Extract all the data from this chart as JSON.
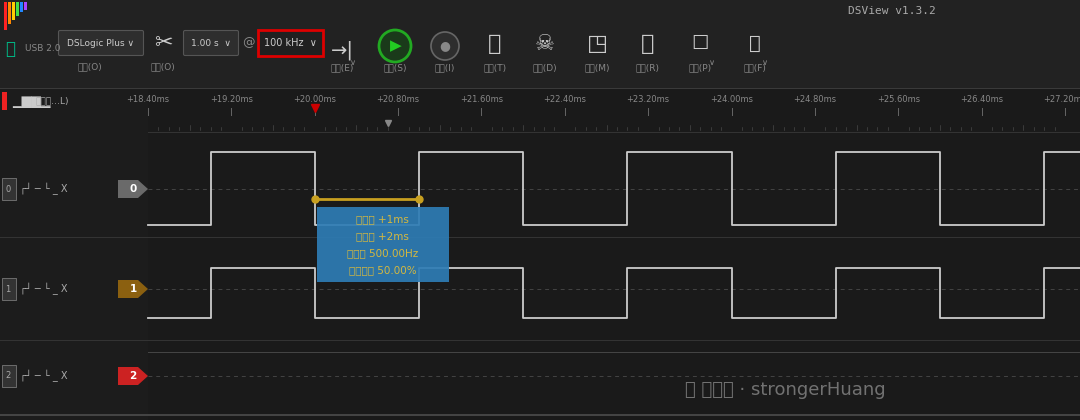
{
  "bg_color": "#1a1a1a",
  "toolbar_bg": "#222222",
  "title_text": "DSView v1.3.2",
  "title_color": "#cccccc",
  "timeline_labels": [
    "+18.40ms",
    "+19.20ms",
    "+20.00ms",
    "+20.80ms",
    "+21.60ms",
    "+22.40ms",
    "+23.20ms",
    "+24.00ms",
    "+24.80ms",
    "+25.60ms",
    "+26.40ms",
    "+27.20ms"
  ],
  "waveform_color": "#cccccc",
  "cursor_color": "#c8a020",
  "popup_bg": "#2e7db5",
  "popup_text_color": "#d4b840",
  "popup_lines": [
    "宽度： +1ms",
    "周期： +2ms",
    "频率： 500.00Hz",
    "占空比： 50.00%"
  ],
  "watermark_color": "#888888",
  "ch0_badge_color": "#6a6a6a",
  "ch1_badge_color": "#8b6010",
  "ch2_badge_color": "#cc2222",
  "logic_icon_color": "#ee3333",
  "label_text_color": "#aaaaaa",
  "separator_color": "#3a3a3a",
  "dashed_line_color": "#444444",
  "timeline_bg": "#1a1a1a",
  "left_panel_bg": "#1e1e1e",
  "signal_area_bg": "#1a1a1a"
}
